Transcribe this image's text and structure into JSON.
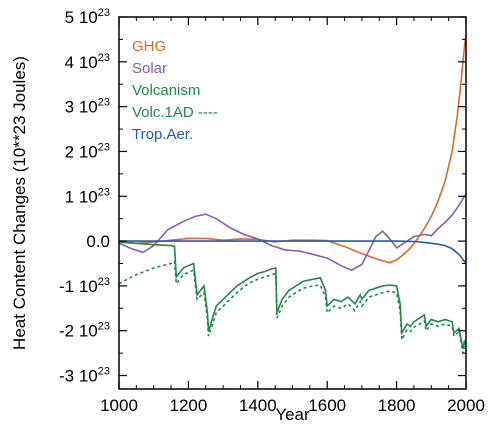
{
  "chart_data": {
    "type": "line",
    "title": "",
    "xlabel": "Year",
    "ylabel": "Heat Content Changes (10**23 Joules)",
    "xlim": [
      1000,
      2000
    ],
    "ylim": [
      -3.3,
      5.0
    ],
    "grid": false,
    "legend_position": "top-left",
    "x_ticks": [
      {
        "value": 1000,
        "label": "1000"
      },
      {
        "value": 1200,
        "label": "1200"
      },
      {
        "value": 1400,
        "label": "1400"
      },
      {
        "value": 1600,
        "label": "1600"
      },
      {
        "value": 1800,
        "label": "1800"
      },
      {
        "value": 2000,
        "label": "2000"
      }
    ],
    "y_ticks": [
      {
        "value": 5,
        "base": "5 10",
        "exp": "23"
      },
      {
        "value": 4,
        "base": "4 10",
        "exp": "23"
      },
      {
        "value": 3,
        "base": "3 10",
        "exp": "23"
      },
      {
        "value": 2,
        "base": "2 10",
        "exp": "23"
      },
      {
        "value": 1,
        "base": "1 10",
        "exp": "23"
      },
      {
        "value": 0,
        "base": "0.0",
        "exp": ""
      },
      {
        "value": -1,
        "base": "-1 10",
        "exp": "23"
      },
      {
        "value": -2,
        "base": "-2 10",
        "exp": "23"
      },
      {
        "value": -3,
        "base": "-3 10",
        "exp": "23"
      }
    ],
    "series": [
      {
        "name": "GHG",
        "legend": "GHG",
        "color": "#e06a2c",
        "dash": false,
        "points": [
          [
            1000,
            -0.03
          ],
          [
            1050,
            -0.05
          ],
          [
            1100,
            -0.02
          ],
          [
            1150,
            0.02
          ],
          [
            1200,
            0.06
          ],
          [
            1250,
            0.06
          ],
          [
            1300,
            0.02
          ],
          [
            1350,
            0.05
          ],
          [
            1400,
            0.04
          ],
          [
            1450,
            -0.02
          ],
          [
            1500,
            0.02
          ],
          [
            1550,
            0.02
          ],
          [
            1600,
            0.01
          ],
          [
            1650,
            -0.12
          ],
          [
            1700,
            -0.28
          ],
          [
            1750,
            -0.42
          ],
          [
            1780,
            -0.48
          ],
          [
            1800,
            -0.42
          ],
          [
            1820,
            -0.3
          ],
          [
            1840,
            -0.15
          ],
          [
            1860,
            0.05
          ],
          [
            1880,
            0.28
          ],
          [
            1900,
            0.55
          ],
          [
            1920,
            0.9
          ],
          [
            1940,
            1.35
          ],
          [
            1960,
            2.0
          ],
          [
            1975,
            2.8
          ],
          [
            1985,
            3.5
          ],
          [
            1995,
            4.3
          ],
          [
            2000,
            4.6
          ]
        ]
      },
      {
        "name": "Solar",
        "legend": "Solar",
        "color": "#8c5cad",
        "dash": false,
        "points": [
          [
            1000,
            -0.05
          ],
          [
            1040,
            -0.18
          ],
          [
            1070,
            -0.25
          ],
          [
            1100,
            -0.1
          ],
          [
            1140,
            0.25
          ],
          [
            1180,
            0.42
          ],
          [
            1220,
            0.55
          ],
          [
            1250,
            0.6
          ],
          [
            1280,
            0.5
          ],
          [
            1320,
            0.3
          ],
          [
            1360,
            0.15
          ],
          [
            1400,
            0.05
          ],
          [
            1440,
            -0.1
          ],
          [
            1480,
            -0.2
          ],
          [
            1520,
            -0.22
          ],
          [
            1560,
            -0.3
          ],
          [
            1600,
            -0.38
          ],
          [
            1640,
            -0.55
          ],
          [
            1670,
            -0.65
          ],
          [
            1700,
            -0.52
          ],
          [
            1720,
            -0.22
          ],
          [
            1740,
            0.1
          ],
          [
            1760,
            0.22
          ],
          [
            1780,
            0.05
          ],
          [
            1800,
            -0.15
          ],
          [
            1820,
            -0.05
          ],
          [
            1850,
            0.1
          ],
          [
            1880,
            0.15
          ],
          [
            1900,
            0.12
          ],
          [
            1920,
            0.28
          ],
          [
            1940,
            0.42
          ],
          [
            1960,
            0.58
          ],
          [
            1980,
            0.8
          ],
          [
            2000,
            1.05
          ]
        ]
      },
      {
        "name": "Volcanism",
        "legend": "Volcanism",
        "color": "#1d8a45",
        "dash": false,
        "points": [
          [
            1000,
            -0.02
          ],
          [
            1050,
            -0.05
          ],
          [
            1100,
            -0.08
          ],
          [
            1150,
            -0.1
          ],
          [
            1160,
            -0.12
          ],
          [
            1165,
            -0.8
          ],
          [
            1185,
            -0.6
          ],
          [
            1200,
            -0.55
          ],
          [
            1215,
            -0.5
          ],
          [
            1225,
            -1.2
          ],
          [
            1245,
            -1.0
          ],
          [
            1255,
            -1.6
          ],
          [
            1258,
            -2.02
          ],
          [
            1270,
            -1.7
          ],
          [
            1280,
            -1.45
          ],
          [
            1300,
            -1.3
          ],
          [
            1320,
            -1.15
          ],
          [
            1340,
            -1.0
          ],
          [
            1360,
            -0.9
          ],
          [
            1380,
            -0.8
          ],
          [
            1400,
            -0.72
          ],
          [
            1420,
            -0.68
          ],
          [
            1440,
            -0.62
          ],
          [
            1452,
            -0.6
          ],
          [
            1455,
            -1.6
          ],
          [
            1470,
            -1.3
          ],
          [
            1490,
            -1.1
          ],
          [
            1510,
            -1.0
          ],
          [
            1530,
            -0.9
          ],
          [
            1560,
            -0.85
          ],
          [
            1580,
            -0.82
          ],
          [
            1595,
            -1.1
          ],
          [
            1600,
            -1.45
          ],
          [
            1620,
            -1.3
          ],
          [
            1640,
            -1.35
          ],
          [
            1660,
            -1.25
          ],
          [
            1680,
            -1.4
          ],
          [
            1695,
            -1.2
          ],
          [
            1700,
            -1.3
          ],
          [
            1720,
            -1.1
          ],
          [
            1740,
            -1.05
          ],
          [
            1760,
            -1.0
          ],
          [
            1780,
            -0.98
          ],
          [
            1800,
            -1.0
          ],
          [
            1810,
            -1.4
          ],
          [
            1815,
            -2.05
          ],
          [
            1830,
            -1.85
          ],
          [
            1840,
            -1.9
          ],
          [
            1850,
            -1.8
          ],
          [
            1860,
            -1.75
          ],
          [
            1880,
            -1.65
          ],
          [
            1885,
            -1.9
          ],
          [
            1900,
            -1.75
          ],
          [
            1920,
            -1.8
          ],
          [
            1940,
            -1.75
          ],
          [
            1960,
            -1.8
          ],
          [
            1965,
            -2.05
          ],
          [
            1980,
            -1.95
          ],
          [
            1985,
            -2.15
          ],
          [
            1991,
            -2.4
          ],
          [
            1995,
            -2.25
          ],
          [
            2000,
            -2.35
          ]
        ]
      },
      {
        "name": "Volc.1AD ----",
        "legend": "Volc.1AD ----",
        "color": "#1d8a45",
        "dash": true,
        "points": [
          [
            1000,
            -0.95
          ],
          [
            1050,
            -0.75
          ],
          [
            1100,
            -0.6
          ],
          [
            1150,
            -0.5
          ],
          [
            1160,
            -0.45
          ],
          [
            1165,
            -0.95
          ],
          [
            1185,
            -0.75
          ],
          [
            1200,
            -0.7
          ],
          [
            1215,
            -0.65
          ],
          [
            1225,
            -1.3
          ],
          [
            1245,
            -1.15
          ],
          [
            1255,
            -1.75
          ],
          [
            1258,
            -2.12
          ],
          [
            1270,
            -1.85
          ],
          [
            1280,
            -1.6
          ],
          [
            1300,
            -1.45
          ],
          [
            1320,
            -1.3
          ],
          [
            1340,
            -1.15
          ],
          [
            1360,
            -1.02
          ],
          [
            1380,
            -0.92
          ],
          [
            1400,
            -0.85
          ],
          [
            1420,
            -0.8
          ],
          [
            1440,
            -0.75
          ],
          [
            1452,
            -0.72
          ],
          [
            1455,
            -1.72
          ],
          [
            1470,
            -1.45
          ],
          [
            1490,
            -1.25
          ],
          [
            1510,
            -1.15
          ],
          [
            1530,
            -1.05
          ],
          [
            1560,
            -1.0
          ],
          [
            1580,
            -0.98
          ],
          [
            1595,
            -1.25
          ],
          [
            1600,
            -1.6
          ],
          [
            1620,
            -1.45
          ],
          [
            1640,
            -1.5
          ],
          [
            1660,
            -1.4
          ],
          [
            1680,
            -1.55
          ],
          [
            1695,
            -1.35
          ],
          [
            1700,
            -1.45
          ],
          [
            1720,
            -1.25
          ],
          [
            1740,
            -1.2
          ],
          [
            1760,
            -1.15
          ],
          [
            1780,
            -1.12
          ],
          [
            1800,
            -1.15
          ],
          [
            1810,
            -1.55
          ],
          [
            1815,
            -2.2
          ],
          [
            1830,
            -1.98
          ],
          [
            1840,
            -2.02
          ],
          [
            1850,
            -1.92
          ],
          [
            1860,
            -1.88
          ],
          [
            1880,
            -1.78
          ],
          [
            1885,
            -2.0
          ],
          [
            1900,
            -1.85
          ],
          [
            1920,
            -1.9
          ],
          [
            1940,
            -1.85
          ],
          [
            1960,
            -1.9
          ],
          [
            1965,
            -2.12
          ],
          [
            1980,
            -2.02
          ],
          [
            1985,
            -2.22
          ],
          [
            1991,
            -2.5
          ],
          [
            1995,
            -2.33
          ],
          [
            2000,
            -2.42
          ]
        ]
      },
      {
        "name": "Trop.Aer.",
        "legend": "Trop.Aer.",
        "color": "#1f5fae",
        "dash": false,
        "points": [
          [
            1000,
            0.0
          ],
          [
            1800,
            0.0
          ],
          [
            1850,
            -0.01
          ],
          [
            1880,
            -0.03
          ],
          [
            1900,
            -0.05
          ],
          [
            1920,
            -0.07
          ],
          [
            1940,
            -0.1
          ],
          [
            1960,
            -0.17
          ],
          [
            1980,
            -0.3
          ],
          [
            2000,
            -0.5
          ]
        ]
      }
    ]
  }
}
